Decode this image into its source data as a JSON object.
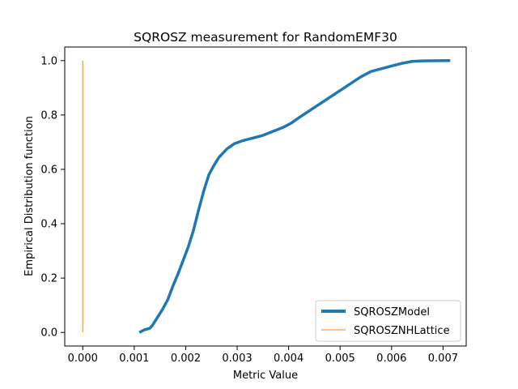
{
  "chart_data": {
    "type": "line",
    "title": "SQROSZ measurement for RandomEMF30",
    "xlabel": "Metric Value",
    "ylabel": "Empirical Distribution function",
    "xlim": [
      -0.00035,
      0.00745
    ],
    "ylim": [
      -0.05,
      1.05
    ],
    "x_ticks": [
      0.0,
      0.001,
      0.002,
      0.003,
      0.004,
      0.005,
      0.006,
      0.007
    ],
    "x_tick_labels": [
      "0.000",
      "0.001",
      "0.002",
      "0.003",
      "0.004",
      "0.005",
      "0.006",
      "0.007"
    ],
    "y_ticks": [
      0.0,
      0.2,
      0.4,
      0.6,
      0.8,
      1.0
    ],
    "y_tick_labels": [
      "0.0",
      "0.2",
      "0.4",
      "0.6",
      "0.8",
      "1.0"
    ],
    "grid": false,
    "legend_position": "lower-right",
    "series": [
      {
        "name": "SQROSZModel",
        "color": "#1f77b4",
        "line_width": "thick",
        "points": [
          [
            0.0011,
            0.0
          ],
          [
            0.0012,
            0.01
          ],
          [
            0.0013,
            0.015
          ],
          [
            0.00135,
            0.025
          ],
          [
            0.00145,
            0.055
          ],
          [
            0.00155,
            0.085
          ],
          [
            0.00165,
            0.12
          ],
          [
            0.00175,
            0.17
          ],
          [
            0.00185,
            0.215
          ],
          [
            0.00195,
            0.265
          ],
          [
            0.00205,
            0.315
          ],
          [
            0.00215,
            0.375
          ],
          [
            0.00225,
            0.45
          ],
          [
            0.00235,
            0.52
          ],
          [
            0.00245,
            0.58
          ],
          [
            0.00255,
            0.615
          ],
          [
            0.00265,
            0.645
          ],
          [
            0.0028,
            0.675
          ],
          [
            0.00295,
            0.695
          ],
          [
            0.0031,
            0.705
          ],
          [
            0.0033,
            0.715
          ],
          [
            0.0035,
            0.725
          ],
          [
            0.0037,
            0.74
          ],
          [
            0.0039,
            0.755
          ],
          [
            0.00405,
            0.77
          ],
          [
            0.0042,
            0.79
          ],
          [
            0.0044,
            0.815
          ],
          [
            0.0046,
            0.84
          ],
          [
            0.0048,
            0.865
          ],
          [
            0.005,
            0.89
          ],
          [
            0.0052,
            0.915
          ],
          [
            0.0054,
            0.94
          ],
          [
            0.0056,
            0.96
          ],
          [
            0.0058,
            0.97
          ],
          [
            0.006,
            0.98
          ],
          [
            0.0062,
            0.99
          ],
          [
            0.0064,
            0.997
          ],
          [
            0.0066,
            0.999
          ],
          [
            0.00714,
            1.0
          ]
        ]
      },
      {
        "name": "SQROSZNHLattice",
        "color": "#ff7f0e",
        "line_width": "thin",
        "points": [
          [
            0.0,
            0.0
          ],
          [
            0.0,
            1.0
          ]
        ]
      }
    ]
  }
}
